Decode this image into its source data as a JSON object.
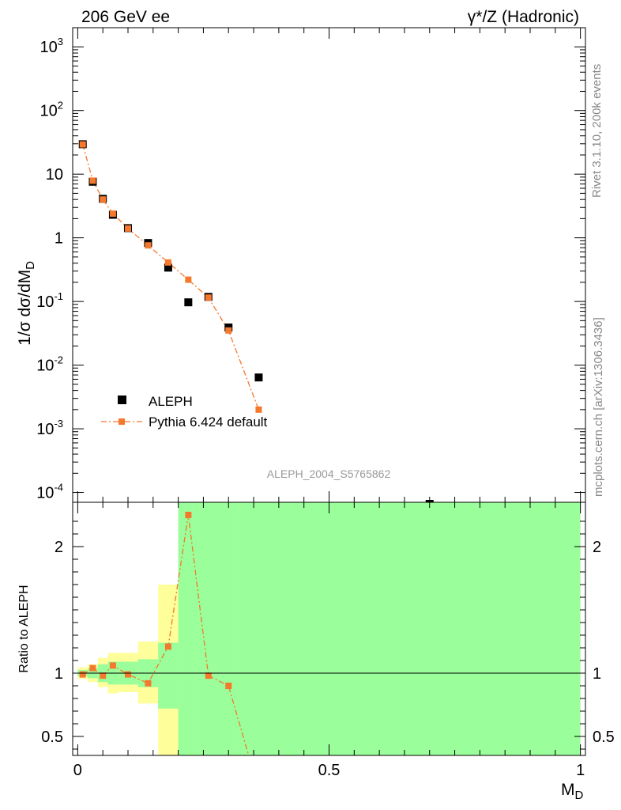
{
  "header": {
    "left": "206 GeV ee",
    "right": "γ*/Z (Hadronic)"
  },
  "side_labels": {
    "rivet": "Rivet 3.1.10,  200k events",
    "mcplots": "mcplots.cern.ch [arXiv:1306.3436]"
  },
  "analysis_id": "ALEPH_2004_S5765862",
  "chart_data": [
    {
      "type": "scatter",
      "panel": "main",
      "ylabel": "1/σ dσ/dM_D",
      "yscale": "log",
      "ylim": [
        7e-05,
        2000
      ],
      "xlim": [
        -0.01,
        1.01
      ],
      "ytick_labels": [
        "10^3",
        "10^2",
        "10",
        "1",
        "10^-1",
        "10^-2",
        "10^-3",
        "10^-4"
      ],
      "legend_position": "lower-left",
      "series": [
        {
          "name": "ALEPH",
          "color": "#000000",
          "x": [
            0.01,
            0.03,
            0.05,
            0.07,
            0.1,
            0.14,
            0.18,
            0.22,
            0.26,
            0.3,
            0.36,
            0.7
          ],
          "y": [
            29.5,
            7.6,
            4.1,
            2.3,
            1.42,
            0.83,
            0.34,
            0.097,
            0.118,
            0.039,
            0.0064,
            5e-05
          ]
        },
        {
          "name": "Pythia 6.424 default",
          "color": "#f5782d",
          "x": [
            0.01,
            0.03,
            0.05,
            0.07,
            0.1,
            0.14,
            0.18,
            0.22,
            0.26,
            0.3,
            0.36
          ],
          "y": [
            29.3,
            7.9,
            4.0,
            2.4,
            1.4,
            0.76,
            0.41,
            0.22,
            0.115,
            0.035,
            0.002
          ]
        }
      ]
    },
    {
      "type": "line",
      "panel": "ratio",
      "xlabel": "M_D",
      "ylabel": "Ratio to ALEPH",
      "ylim": [
        0.35,
        2.35
      ],
      "yticks": [
        0.5,
        1,
        2
      ],
      "ytick_labels": [
        "0.5",
        "1",
        "2"
      ],
      "xticks": [
        0,
        0.5,
        1
      ],
      "xtick_labels": [
        "0",
        "0.5",
        "1"
      ],
      "reference_line": 1,
      "colors": {
        "inner_band": "#9afe9a",
        "outer_band": "#fefe9a"
      },
      "bands": [
        {
          "x0": 0.0,
          "x1": 0.02,
          "inner": [
            0.975,
            1.025
          ],
          "outer": [
            0.955,
            1.045
          ]
        },
        {
          "x0": 0.02,
          "x1": 0.04,
          "inner": [
            0.96,
            1.04
          ],
          "outer": [
            0.93,
            1.07
          ]
        },
        {
          "x0": 0.04,
          "x1": 0.06,
          "inner": [
            0.93,
            1.07
          ],
          "outer": [
            0.89,
            1.12
          ]
        },
        {
          "x0": 0.06,
          "x1": 0.08,
          "inner": [
            0.91,
            1.09
          ],
          "outer": [
            0.84,
            1.16
          ]
        },
        {
          "x0": 0.08,
          "x1": 0.12,
          "inner": [
            0.91,
            1.09
          ],
          "outer": [
            0.85,
            1.16
          ]
        },
        {
          "x0": 0.12,
          "x1": 0.16,
          "inner": [
            0.89,
            1.11
          ],
          "outer": [
            0.76,
            1.25
          ]
        },
        {
          "x0": 0.16,
          "x1": 0.2,
          "inner": [
            0.72,
            1.24
          ],
          "outer": [
            0.3,
            1.7
          ]
        },
        {
          "x0": 0.2,
          "x1": 0.24,
          "inner": [
            0.3,
            2.5
          ],
          "outer": [
            0.3,
            2.5
          ]
        },
        {
          "x0": 0.24,
          "x1": 0.28,
          "inner": [
            0.3,
            2.5
          ],
          "outer": [
            0.43,
            1.65
          ]
        },
        {
          "x0": 0.28,
          "x1": 0.32,
          "inner": [
            0.3,
            2.5
          ],
          "outer": [
            0.3,
            2.19
          ]
        },
        {
          "x0": 0.32,
          "x1": 1.0,
          "inner": [
            0.3,
            2.5
          ],
          "outer": [
            0.3,
            2.5
          ]
        }
      ],
      "series": [
        {
          "name": "Pythia 6.424 default",
          "color": "#f5782d",
          "x": [
            0.01,
            0.03,
            0.05,
            0.07,
            0.1,
            0.14,
            0.18,
            0.22,
            0.26,
            0.3,
            0.34
          ],
          "y": [
            0.99,
            1.04,
            0.98,
            1.06,
            0.99,
            0.92,
            1.21,
            2.25,
            0.98,
            0.9,
            0.3
          ]
        }
      ]
    }
  ]
}
